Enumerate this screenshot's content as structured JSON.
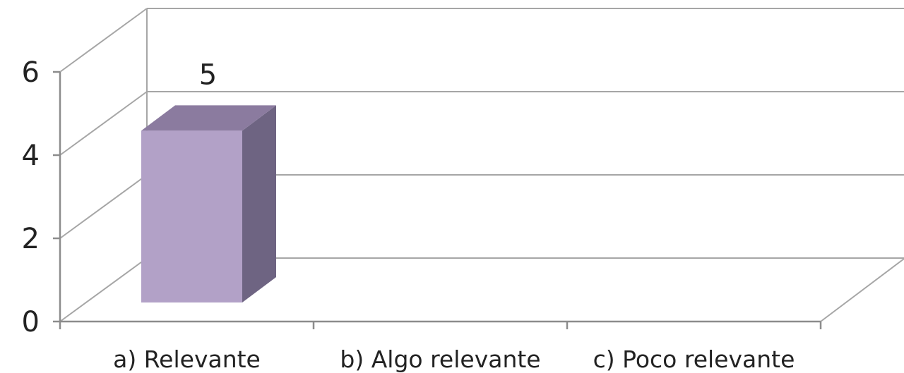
{
  "chart_data": {
    "type": "bar",
    "style": "3d-column",
    "categories": [
      "a) Relevante",
      "b) Algo relevante",
      "c) Poco relevante"
    ],
    "values": [
      5,
      null,
      null
    ],
    "data_labels": [
      "5",
      "",
      ""
    ],
    "ylim": [
      0,
      6
    ],
    "yticks": [
      0,
      2,
      4,
      6
    ],
    "ytick_labels": [
      "0",
      "2",
      "4",
      "6"
    ],
    "grid": true,
    "legend": "none",
    "colors": {
      "bar_front": "#b2a1c7",
      "bar_top": "#8b7b9f",
      "bar_side": "#6e6482",
      "gridline": "#a6a6a6"
    }
  }
}
